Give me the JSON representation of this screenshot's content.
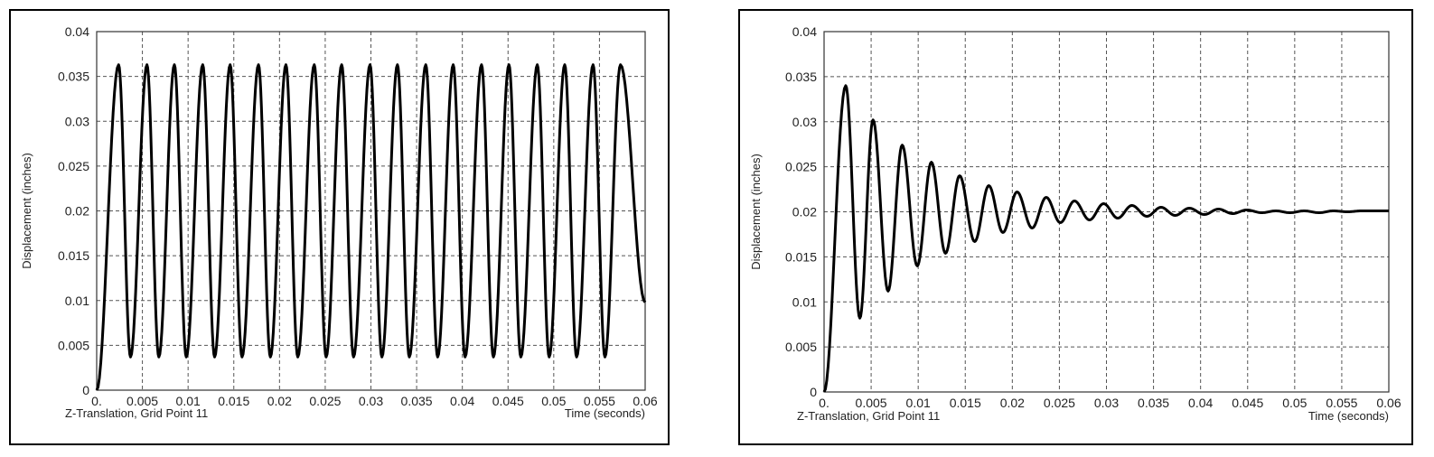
{
  "chart_data": [
    {
      "type": "line",
      "title": "",
      "xlabel": "Time (seconds)",
      "ylabel": "Displacement (inches)",
      "footnote": "Z-Translation, Grid Point 11",
      "xlim": [
        0,
        0.06
      ],
      "ylim": [
        0,
        0.04
      ],
      "grid": true,
      "x_ticks": [
        "0.",
        "0.005",
        "0.01",
        "0.015",
        "0.02",
        "0.025",
        "0.03",
        "0.035",
        "0.04",
        "0.045",
        "0.05",
        "0.055",
        "0.06"
      ],
      "y_ticks": [
        "0",
        "0.005",
        "0.01",
        "0.015",
        "0.02",
        "0.025",
        "0.03",
        "0.035",
        "0.04"
      ],
      "series": [
        {
          "x": [
            0,
            0.0024,
            0.0037,
            0.0055,
            0.0068,
            0.0085,
            0.0098,
            0.0116,
            0.0129,
            0.0146,
            0.0159,
            0.0177,
            0.019,
            0.0207,
            0.022,
            0.0238,
            0.0251,
            0.0268,
            0.0281,
            0.0299,
            0.0312,
            0.0329,
            0.0342,
            0.036,
            0.0373,
            0.039,
            0.0403,
            0.0421,
            0.0434,
            0.0451,
            0.0464,
            0.0482,
            0.0495,
            0.0512,
            0.0525,
            0.0543,
            0.0556,
            0.0573,
            0.06
          ],
          "y": [
            0,
            0.0363,
            0.0037,
            0.0363,
            0.0037,
            0.0363,
            0.0037,
            0.0363,
            0.0037,
            0.0363,
            0.0037,
            0.0363,
            0.0037,
            0.0363,
            0.0037,
            0.0363,
            0.0037,
            0.0363,
            0.0037,
            0.0363,
            0.0037,
            0.0363,
            0.0037,
            0.0363,
            0.0037,
            0.0363,
            0.0037,
            0.0363,
            0.0037,
            0.0363,
            0.0037,
            0.0363,
            0.0037,
            0.0363,
            0.0037,
            0.0363,
            0.0037,
            0.0363,
            0.0098
          ]
        }
      ]
    },
    {
      "type": "line",
      "title": "",
      "xlabel": "Time (seconds)",
      "ylabel": "Displacement (inches)",
      "footnote": "Z-Translation, Grid Point 11",
      "xlim": [
        0,
        0.06
      ],
      "ylim": [
        0,
        0.04
      ],
      "grid": true,
      "x_ticks": [
        "0.",
        "0.005",
        "0.01",
        "0.015",
        "0.02",
        "0.025",
        "0.03",
        "0.035",
        "0.04",
        "0.045",
        "0.05",
        "0.055",
        "0.06"
      ],
      "y_ticks": [
        "0",
        "0.005",
        "0.01",
        "0.015",
        "0.02",
        "0.025",
        "0.03",
        "0.035",
        "0.04"
      ],
      "series": [
        {
          "x": [
            0,
            0.0023,
            0.0038,
            0.0052,
            0.0068,
            0.0083,
            0.0099,
            0.0114,
            0.0129,
            0.0144,
            0.016,
            0.0175,
            0.019,
            0.0205,
            0.0221,
            0.0236,
            0.0251,
            0.0266,
            0.0282,
            0.0297,
            0.0312,
            0.0327,
            0.0343,
            0.0358,
            0.0373,
            0.0388,
            0.0404,
            0.0419,
            0.0434,
            0.0449,
            0.0465,
            0.048,
            0.0495,
            0.051,
            0.0526,
            0.0541,
            0.0556,
            0.0571,
            0.06
          ],
          "y": [
            0,
            0.034,
            0.0082,
            0.0302,
            0.0112,
            0.0274,
            0.014,
            0.0255,
            0.0154,
            0.024,
            0.0167,
            0.0229,
            0.0177,
            0.0222,
            0.0182,
            0.0216,
            0.0188,
            0.0212,
            0.0191,
            0.0209,
            0.0193,
            0.0207,
            0.0195,
            0.0205,
            0.0196,
            0.0204,
            0.0197,
            0.0203,
            0.0198,
            0.0202,
            0.0199,
            0.0201,
            0.0199,
            0.0201,
            0.0199,
            0.0201,
            0.02,
            0.0201,
            0.0201
          ]
        }
      ]
    }
  ]
}
